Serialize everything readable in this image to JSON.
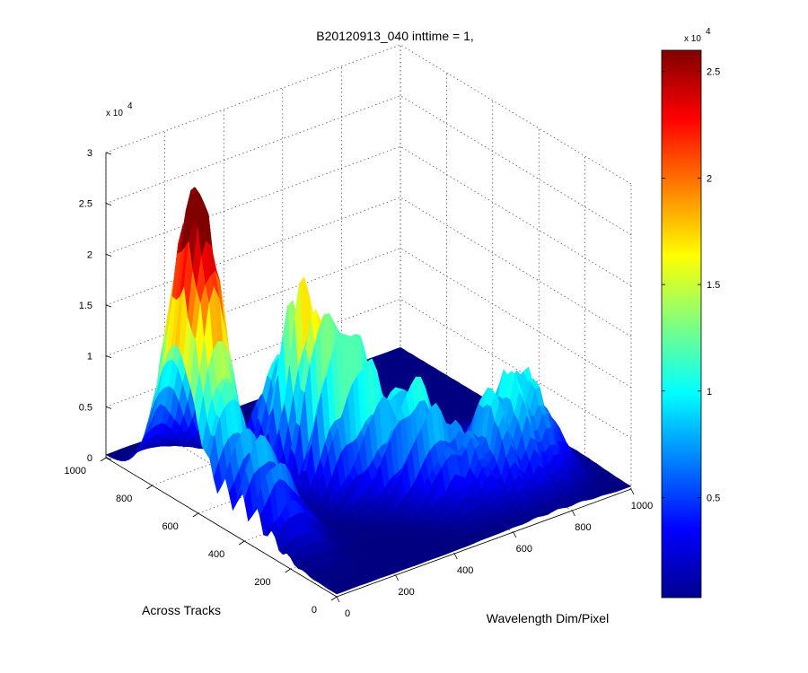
{
  "chart_data": {
    "type": "surface",
    "title": "B20120913_040 inttime = 1,",
    "xlabel": "Wavelength Dim/Pixel",
    "ylabel": "Across Tracks",
    "zlabel": "",
    "x_ticks": [
      "0",
      "200",
      "400",
      "600",
      "800",
      "1000"
    ],
    "y_ticks": [
      "0",
      "200",
      "400",
      "600",
      "800",
      "1000"
    ],
    "z_ticks": [
      "0",
      "0.5",
      "1",
      "1.5",
      "2",
      "2.5",
      "3"
    ],
    "z_multiplier": "x 10",
    "z_multiplier_exp": "4",
    "xlim": [
      0,
      1000
    ],
    "ylim": [
      0,
      1000
    ],
    "zlim": [
      0,
      30000
    ],
    "grid": true,
    "colormap": "jet",
    "colorbar": {
      "ticks": [
        "0.5",
        "1",
        "1.5",
        "2",
        "2.5"
      ],
      "multiplier": "x 10",
      "multiplier_exp": "4",
      "range": [
        300,
        26000
      ]
    },
    "peaks": [
      {
        "x": 70,
        "y": 700,
        "z": 29000,
        "note": "tallest peak, red"
      },
      {
        "x": 330,
        "y": 560,
        "z": 19000
      },
      {
        "x": 520,
        "y": 330,
        "z": 11000
      },
      {
        "x": 720,
        "y": 200,
        "z": 11000
      }
    ]
  }
}
